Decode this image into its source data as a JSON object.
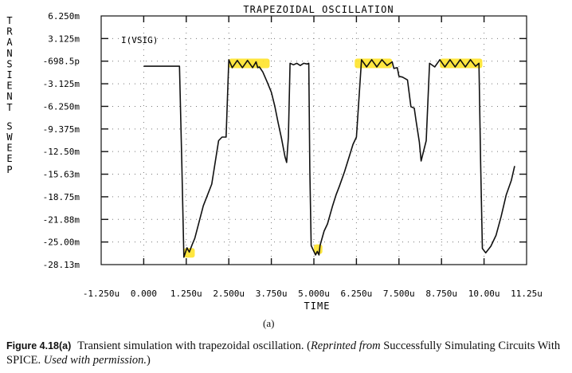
{
  "chart_data": {
    "type": "line",
    "title": "TRAPEZOIDAL OSCILLATION",
    "xlabel": "TIME",
    "ylabel": "TRANSIENT SWEEP",
    "trace_label": "I(VSIG)",
    "x_ticks": [
      "-1.250u",
      "0.000",
      "1.250u",
      "2.500u",
      "3.750u",
      "5.000u",
      "6.250u",
      "7.500u",
      "8.750u",
      "10.00u",
      "11.25u"
    ],
    "y_ticks": [
      "6.250m",
      "3.125m",
      "-698.5p",
      "-3.125m",
      "-6.250m",
      "-9.375m",
      "-12.50m",
      "-15.63m",
      "-18.75m",
      "-21.88m",
      "-25.00m",
      "-28.13m"
    ],
    "xlim": [
      -1.25,
      11.25
    ],
    "ylim": [
      -28.13,
      6.25
    ],
    "x_unit": "u",
    "y_unit": "m",
    "grid": "dotted",
    "highlights": [
      {
        "x": [
          1.18,
          1.5
        ],
        "y": -26.5
      },
      {
        "x": [
          2.5,
          3.7
        ],
        "y": -0.3
      },
      {
        "x": [
          5.0,
          5.25
        ],
        "y": -26.0
      },
      {
        "x": [
          6.2,
          7.3
        ],
        "y": -0.3
      },
      {
        "x": [
          8.7,
          9.95
        ],
        "y": -0.3
      }
    ],
    "series": [
      {
        "x": [
          0.0,
          1.05,
          1.12,
          1.18,
          1.27,
          1.34,
          1.42,
          1.5,
          1.75,
          2.0,
          2.1,
          2.2,
          2.3,
          2.42,
          2.5,
          2.6,
          2.75,
          2.9,
          3.05,
          3.2,
          3.3,
          3.35,
          3.4,
          3.5,
          3.62,
          3.75,
          3.85,
          3.95,
          4.05,
          4.15,
          4.2,
          4.25,
          4.3,
          4.4,
          4.5,
          4.6,
          4.7,
          4.8,
          4.85,
          4.88,
          4.92,
          5.05,
          5.1,
          5.15,
          5.18,
          5.3,
          5.4,
          5.55,
          5.65,
          5.75,
          5.9,
          6.05,
          6.15,
          6.25,
          6.4,
          6.55,
          6.7,
          6.85,
          7.0,
          7.15,
          7.3,
          7.35,
          7.45,
          7.5,
          7.6,
          7.75,
          7.85,
          7.95,
          8.0,
          8.1,
          8.15,
          8.3,
          8.4,
          8.55,
          8.7,
          8.85,
          9.0,
          9.15,
          9.3,
          9.45,
          9.6,
          9.75,
          9.85,
          9.9,
          9.95,
          10.05,
          10.2,
          10.35,
          10.5,
          10.65,
          10.8,
          10.9
        ],
        "y": [
          -0.7,
          -0.7,
          -14.0,
          -27.1,
          -25.8,
          -26.4,
          -25.4,
          -24.5,
          -20.0,
          -17.0,
          -14.0,
          -11.0,
          -10.5,
          -10.5,
          0.2,
          -0.9,
          0.1,
          -0.9,
          0.1,
          -0.9,
          -0.1,
          -0.9,
          -0.8,
          -1.5,
          -2.8,
          -4.3,
          -6.2,
          -8.5,
          -10.7,
          -13.2,
          -14.0,
          -10.5,
          -0.3,
          -0.5,
          -0.3,
          -0.6,
          -0.3,
          -0.4,
          -0.3,
          -15.0,
          -25.5,
          -26.8,
          -26.3,
          -26.8,
          -25.5,
          -23.5,
          -22.5,
          -20.0,
          -18.5,
          -17.3,
          -15.3,
          -13.0,
          -11.5,
          -10.5,
          0.2,
          -0.8,
          0.2,
          -0.8,
          0.2,
          -0.6,
          -0.1,
          -1.0,
          -0.9,
          -2.1,
          -2.2,
          -2.6,
          -6.3,
          -6.5,
          -8.2,
          -11.2,
          -13.8,
          -11.0,
          -0.3,
          -0.8,
          0.2,
          -0.8,
          0.2,
          -0.8,
          0.2,
          -0.8,
          0.2,
          -0.7,
          -0.3,
          -14.0,
          -25.9,
          -26.5,
          -25.6,
          -24.1,
          -21.5,
          -18.5,
          -16.5,
          -14.5
        ]
      }
    ]
  },
  "panel_label": "(a)",
  "caption": {
    "figure_no": "Figure 4.18(a)",
    "text_1": "Transient simulation with trapezoidal oscillation. (",
    "reprinted_from": "Reprinted from",
    "text_2": " Successfully Simulating Circuits With SPICE. ",
    "used_with": "Used with permission.",
    "text_3": ")"
  }
}
